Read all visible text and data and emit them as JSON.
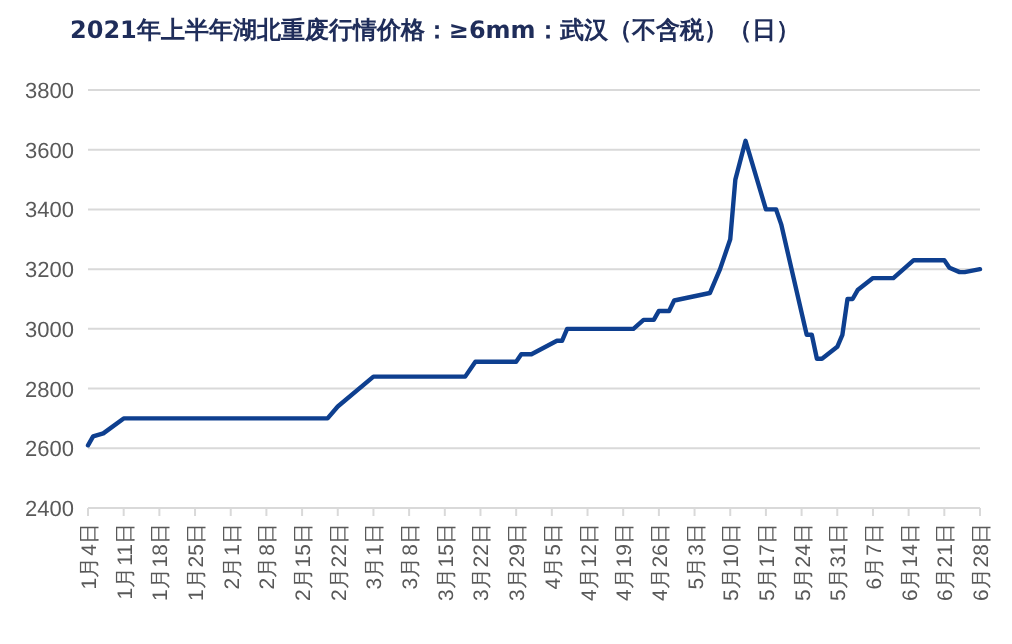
{
  "chart_data": {
    "type": "line",
    "title": "2021年上半年湖北重废行情价格：≥6mm：武汉（不含税）（日）",
    "color": "#0e3f8f",
    "grid": "y",
    "x": [
      "--01-04",
      "--01-05",
      "--01-07",
      "--01-11",
      "--02-20",
      "--02-22",
      "--03-01",
      "--03-19",
      "--03-21",
      "--03-29",
      "--03-30",
      "--04-01",
      "--04-06",
      "--04-07",
      "--04-08",
      "--04-21",
      "--04-23",
      "--04-25",
      "--04-26",
      "--04-28",
      "--04-29",
      "--05-06",
      "--05-08",
      "--05-10",
      "--05-11",
      "--05-13",
      "--05-17",
      "--05-19",
      "--05-20",
      "--05-25",
      "--05-26",
      "--05-27",
      "--05-28",
      "--05-31",
      "--06-01",
      "--06-02",
      "--06-03",
      "--06-04",
      "--06-07",
      "--06-11",
      "--06-15",
      "--06-21",
      "--06-22",
      "--06-24",
      "--06-25",
      "--06-28"
    ],
    "values": [
      2610,
      2640,
      2650,
      2700,
      2700,
      2740,
      2840,
      2840,
      2890,
      2890,
      2915,
      2915,
      2960,
      2960,
      3000,
      3000,
      3030,
      3030,
      3060,
      3060,
      3095,
      3120,
      3200,
      3300,
      3500,
      3630,
      3400,
      3400,
      3350,
      2980,
      2980,
      2900,
      2900,
      2940,
      2980,
      3100,
      3100,
      3130,
      3170,
      3170,
      3230,
      3230,
      3205,
      3190,
      3190,
      3200
    ],
    "xlim": [
      "--01-04",
      "--06-28"
    ],
    "ylim": [
      2400,
      3800
    ],
    "yticks": [
      2400,
      2600,
      2800,
      3000,
      3200,
      3400,
      3600,
      3800
    ],
    "xticks": [
      {
        "value": "--01-04",
        "label": "1月4日"
      },
      {
        "value": "--01-11",
        "label": "1月11日"
      },
      {
        "value": "--01-18",
        "label": "1月18日"
      },
      {
        "value": "--01-25",
        "label": "1月25日"
      },
      {
        "value": "--02-01",
        "label": "2月1日"
      },
      {
        "value": "--02-08",
        "label": "2月8日"
      },
      {
        "value": "--02-15",
        "label": "2月15日"
      },
      {
        "value": "--02-22",
        "label": "2月22日"
      },
      {
        "value": "--03-01",
        "label": "3月1日"
      },
      {
        "value": "--03-08",
        "label": "3月8日"
      },
      {
        "value": "--03-15",
        "label": "3月15日"
      },
      {
        "value": "--03-22",
        "label": "3月22日"
      },
      {
        "value": "--03-29",
        "label": "3月29日"
      },
      {
        "value": "--04-05",
        "label": "4月5日"
      },
      {
        "value": "--04-12",
        "label": "4月12日"
      },
      {
        "value": "--04-19",
        "label": "4月19日"
      },
      {
        "value": "--04-26",
        "label": "4月26日"
      },
      {
        "value": "--05-03",
        "label": "5月3日"
      },
      {
        "value": "--05-10",
        "label": "5月10日"
      },
      {
        "value": "--05-17",
        "label": "5月17日"
      },
      {
        "value": "--05-24",
        "label": "5月24日"
      },
      {
        "value": "--05-31",
        "label": "5月31日"
      },
      {
        "value": "--06-07",
        "label": "6月7日"
      },
      {
        "value": "--06-14",
        "label": "6月14日"
      },
      {
        "value": "--06-21",
        "label": "6月21日"
      },
      {
        "value": "--06-28",
        "label": "6月28日"
      }
    ]
  }
}
